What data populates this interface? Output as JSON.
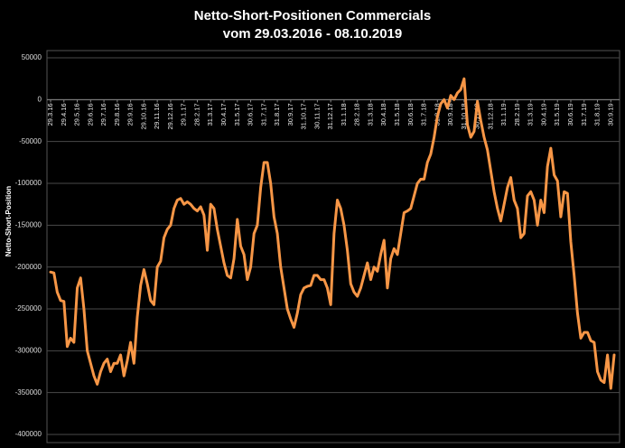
{
  "chart_data": {
    "type": "line",
    "title": "Netto-Short-Positionen Commercials",
    "subtitle": "vom 29.03.2016 - 08.10.2019",
    "y_label": "Netto-Short-Position",
    "color": "#f79646",
    "grid": true,
    "ylim": [
      -400000,
      50000
    ],
    "yticks": [
      -400000,
      -350000,
      -300000,
      -250000,
      -200000,
      -150000,
      -100000,
      -50000,
      0,
      50000
    ],
    "categories": [
      "29.3.16",
      null,
      null,
      null,
      "29.4.16",
      null,
      null,
      null,
      "29.5.16",
      null,
      null,
      null,
      "29.6.16",
      null,
      null,
      null,
      "29.7.16",
      null,
      null,
      null,
      "29.8.16",
      null,
      null,
      null,
      "29.9.16",
      null,
      null,
      null,
      "29.10.16",
      null,
      null,
      null,
      "29.11.16",
      null,
      null,
      null,
      "29.12.16",
      null,
      null,
      null,
      "29.1.17",
      null,
      null,
      null,
      "28.2.17",
      null,
      null,
      null,
      "31.3.17",
      null,
      null,
      null,
      "30.4.17",
      null,
      null,
      null,
      "31.5.17",
      null,
      null,
      null,
      "30.6.17",
      null,
      null,
      null,
      "31.7.17",
      null,
      null,
      null,
      "31.8.17",
      null,
      null,
      null,
      "30.9.17",
      null,
      null,
      null,
      "31.10.17",
      null,
      null,
      null,
      "30.11.17",
      null,
      null,
      null,
      "31.12.17",
      null,
      null,
      null,
      "31.1.18",
      null,
      null,
      null,
      "28.2.18",
      null,
      null,
      null,
      "31.3.18",
      null,
      null,
      null,
      "30.4.18",
      null,
      null,
      null,
      "31.5.18",
      null,
      null,
      null,
      "30.6.18",
      null,
      null,
      null,
      "31.7.18",
      null,
      null,
      null,
      "31.8.18",
      null,
      null,
      null,
      "30.9.18",
      null,
      null,
      null,
      "31.10.18",
      null,
      null,
      null,
      "30.11.18",
      null,
      null,
      null,
      "31.12.18",
      null,
      null,
      null,
      "31.1.19",
      null,
      null,
      null,
      "28.2.19",
      null,
      null,
      null,
      "31.3.19",
      null,
      null,
      null,
      "30.4.19",
      null,
      null,
      null,
      "31.5.19",
      null,
      null,
      null,
      "30.6.19",
      null,
      null,
      null,
      "31.7.19",
      null,
      null,
      null,
      "31.8.19",
      null,
      null,
      null,
      "30.9.19",
      null
    ],
    "values": [
      -206000,
      -207000,
      -230000,
      -240000,
      -241000,
      -295000,
      -285000,
      -290000,
      -225000,
      -213000,
      -250000,
      -300000,
      -315000,
      -330000,
      -340000,
      -325000,
      -315000,
      -310000,
      -325000,
      -315000,
      -315000,
      -305000,
      -330000,
      -312000,
      -290000,
      -315000,
      -260000,
      -222000,
      -203000,
      -220000,
      -240000,
      -245000,
      -200000,
      -193000,
      -165000,
      -155000,
      -150000,
      -130000,
      -120000,
      -118000,
      -125000,
      -122000,
      -125000,
      -130000,
      -133000,
      -128000,
      -138000,
      -180000,
      -125000,
      -130000,
      -155000,
      -175000,
      -195000,
      -210000,
      -213000,
      -190000,
      -143000,
      -175000,
      -185000,
      -215000,
      -200000,
      -160000,
      -150000,
      -105000,
      -75000,
      -75000,
      -100000,
      -140000,
      -160000,
      -200000,
      -225000,
      -250000,
      -262000,
      -272000,
      -255000,
      -233000,
      -225000,
      -223000,
      -222000,
      -210000,
      -210000,
      -215000,
      -215000,
      -225000,
      -245000,
      -160000,
      -120000,
      -130000,
      -150000,
      -180000,
      -220000,
      -230000,
      -235000,
      -225000,
      -210000,
      -195000,
      -215000,
      -200000,
      -205000,
      -185000,
      -168000,
      -225000,
      -190000,
      -178000,
      -185000,
      -160000,
      -135000,
      -133000,
      -130000,
      -115000,
      -100000,
      -95000,
      -95000,
      -75000,
      -65000,
      -45000,
      -20000,
      -5000,
      0,
      -10000,
      5000,
      0,
      8000,
      12000,
      25000,
      -30000,
      -45000,
      -38000,
      -2000,
      -25000,
      -45000,
      -60000,
      -85000,
      -110000,
      -130000,
      -145000,
      -125000,
      -105000,
      -93000,
      -120000,
      -130000,
      -165000,
      -160000,
      -115000,
      -110000,
      -120000,
      -150000,
      -120000,
      -135000,
      -80000,
      -58000,
      -90000,
      -97000,
      -140000,
      -110000,
      -112000,
      -170000,
      -210000,
      -255000,
      -285000,
      -278000,
      -278000,
      -288000,
      -290000,
      -325000,
      -335000,
      -338000,
      -305000,
      -345000,
      -305000
    ]
  }
}
